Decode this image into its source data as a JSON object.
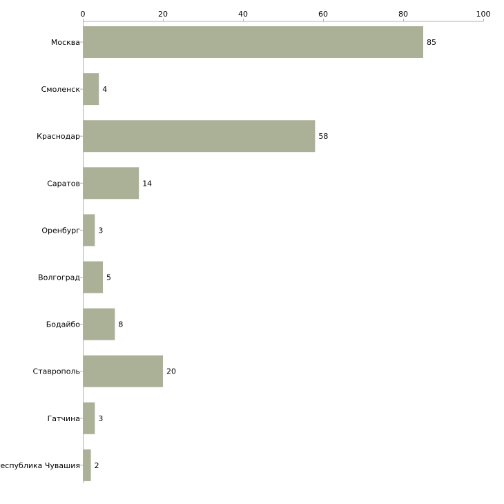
{
  "chart_data": {
    "type": "bar",
    "orientation": "horizontal",
    "title": "",
    "xlabel": "",
    "ylabel": "",
    "categories": [
      "Москва",
      "Смоленск",
      "Краснодар",
      "Саратов",
      "Оренбург",
      "Волгоград",
      "Бодайбо",
      "Ставрополь",
      "Гатчина",
      "Республика Чувашия"
    ],
    "values": [
      85,
      4,
      58,
      14,
      3,
      5,
      8,
      20,
      3,
      2
    ],
    "xlim": [
      0,
      100
    ],
    "x_ticks": [
      0,
      20,
      40,
      60,
      80,
      100
    ],
    "axis_position": "top",
    "grid": false,
    "legend": "none",
    "bar_color": "#abb197",
    "axis_color": "#b0b0b0"
  }
}
